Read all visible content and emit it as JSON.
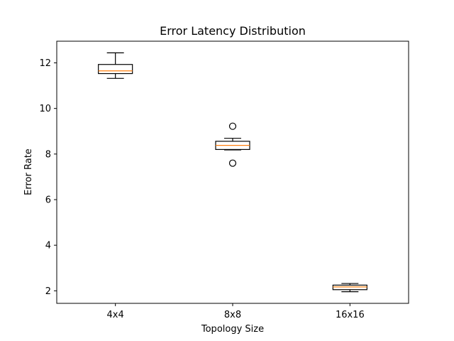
{
  "chart_data": {
    "type": "box",
    "title": "Error Latency Distribution",
    "xlabel": "Topology Size",
    "ylabel": "Error Rate",
    "ylim": [
      1.45,
      12.95
    ],
    "yticks": [
      2,
      4,
      6,
      8,
      10,
      12
    ],
    "categories": [
      "4x4",
      "8x8",
      "16x16"
    ],
    "boxes": [
      {
        "category": "4x4",
        "whisker_low": 11.32,
        "q1": 11.53,
        "median": 11.65,
        "q3": 11.93,
        "whisker_high": 12.44,
        "outliers": []
      },
      {
        "category": "8x8",
        "whisker_low": 8.18,
        "q1": 8.2,
        "median": 8.38,
        "q3": 8.56,
        "whisker_high": 8.69,
        "outliers": [
          9.22,
          7.6
        ]
      },
      {
        "category": "16x16",
        "whisker_low": 1.96,
        "q1": 2.05,
        "median": 2.17,
        "q3": 2.25,
        "whisker_high": 2.32,
        "outliers": []
      }
    ],
    "grid": false,
    "colors": {
      "box": "#000000",
      "median": "#ff7f0e",
      "outlier": "#000000"
    }
  }
}
